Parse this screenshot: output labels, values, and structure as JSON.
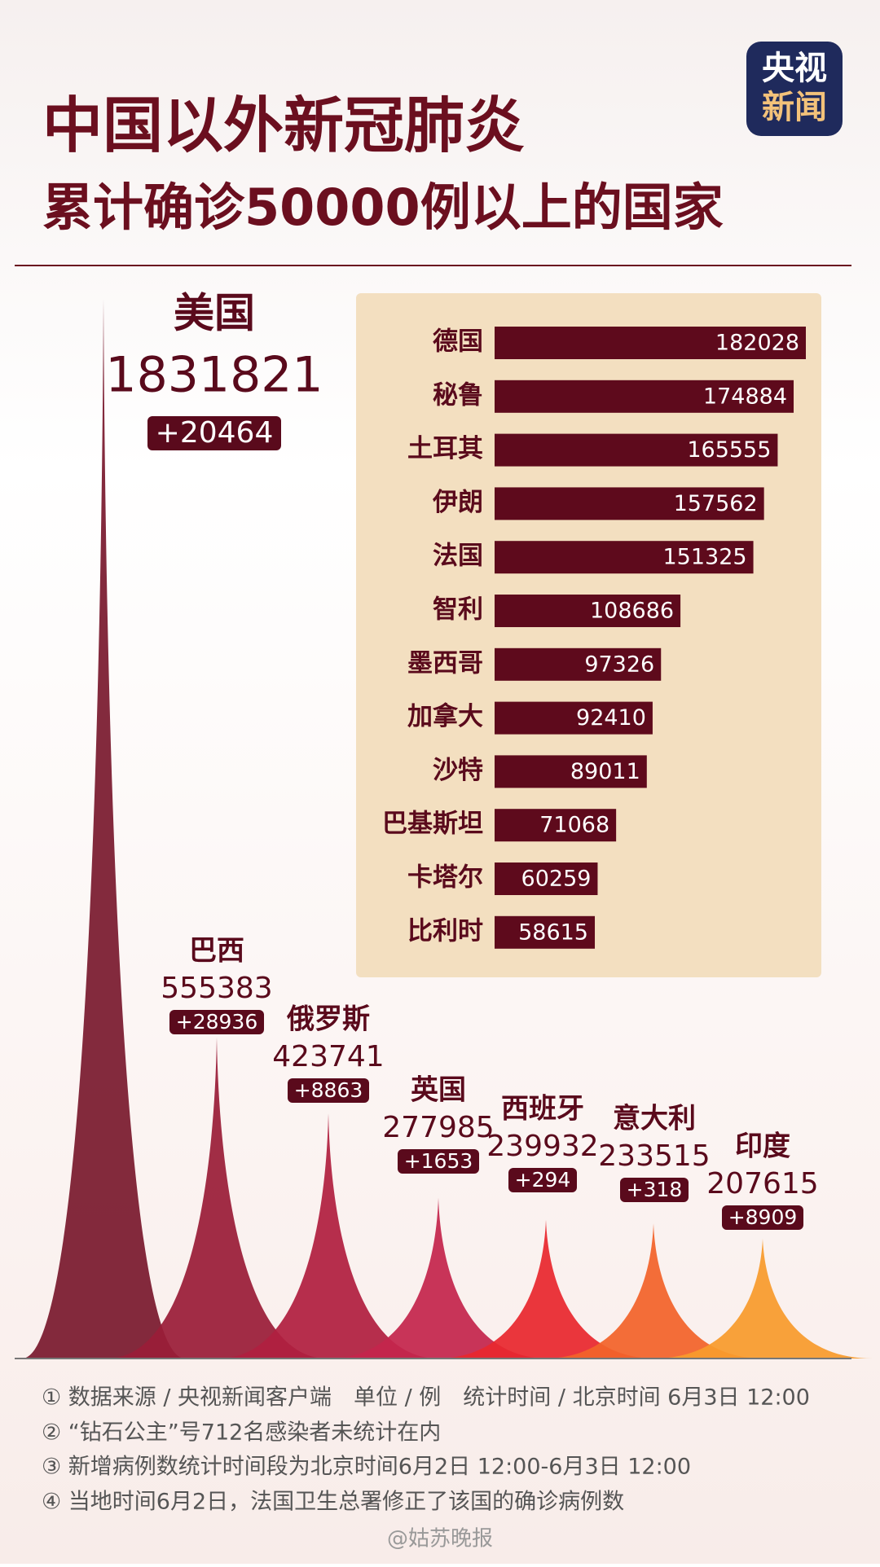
{
  "header": {
    "title_line1": "中国以外新冠肺炎",
    "title_line2": "累计确诊50000例以上的国家",
    "logo_top": "央视",
    "logo_bottom": "新闻"
  },
  "chart_data": [
    {
      "type": "peak",
      "categories": [
        "美国",
        "巴西",
        "俄罗斯",
        "英国",
        "西班牙",
        "意大利",
        "印度"
      ],
      "values": [
        1831821,
        555383,
        423741,
        277985,
        239932,
        233515,
        207615
      ],
      "increase_labels": [
        "+20464",
        "+28936",
        "+8863",
        "+1653",
        "+294",
        "+318",
        "+8909"
      ],
      "colors": [
        "#7a1a2e",
        "#9a1d38",
        "#b01f40",
        "#c4264c",
        "#e8282e",
        "#f2632a",
        "#f79b2c"
      ]
    },
    {
      "type": "bar",
      "categories": [
        "德国",
        "秘鲁",
        "土耳其",
        "伊朗",
        "法国",
        "智利",
        "墨西哥",
        "加拿大",
        "沙特",
        "巴基斯坦",
        "卡塔尔",
        "比利时"
      ],
      "values": [
        182028,
        174884,
        165555,
        157562,
        151325,
        108686,
        97326,
        92410,
        89011,
        71068,
        60259,
        58615
      ],
      "color": "#5e0a1c"
    }
  ],
  "footnotes": [
    "① 数据来源 / 央视新闻客户端　单位 / 例　统计时间 / 北京时间 6月3日 12:00",
    "② “钻石公主”号712名感染者未统计在内",
    "③ 新增病例数统计时间段为北京时间6月2日 12:00-6月3日 12:00",
    "④ 当地时间6月2日，法国卫生总署修正了该国的确诊病例数"
  ],
  "watermark": "@姑苏晚报"
}
